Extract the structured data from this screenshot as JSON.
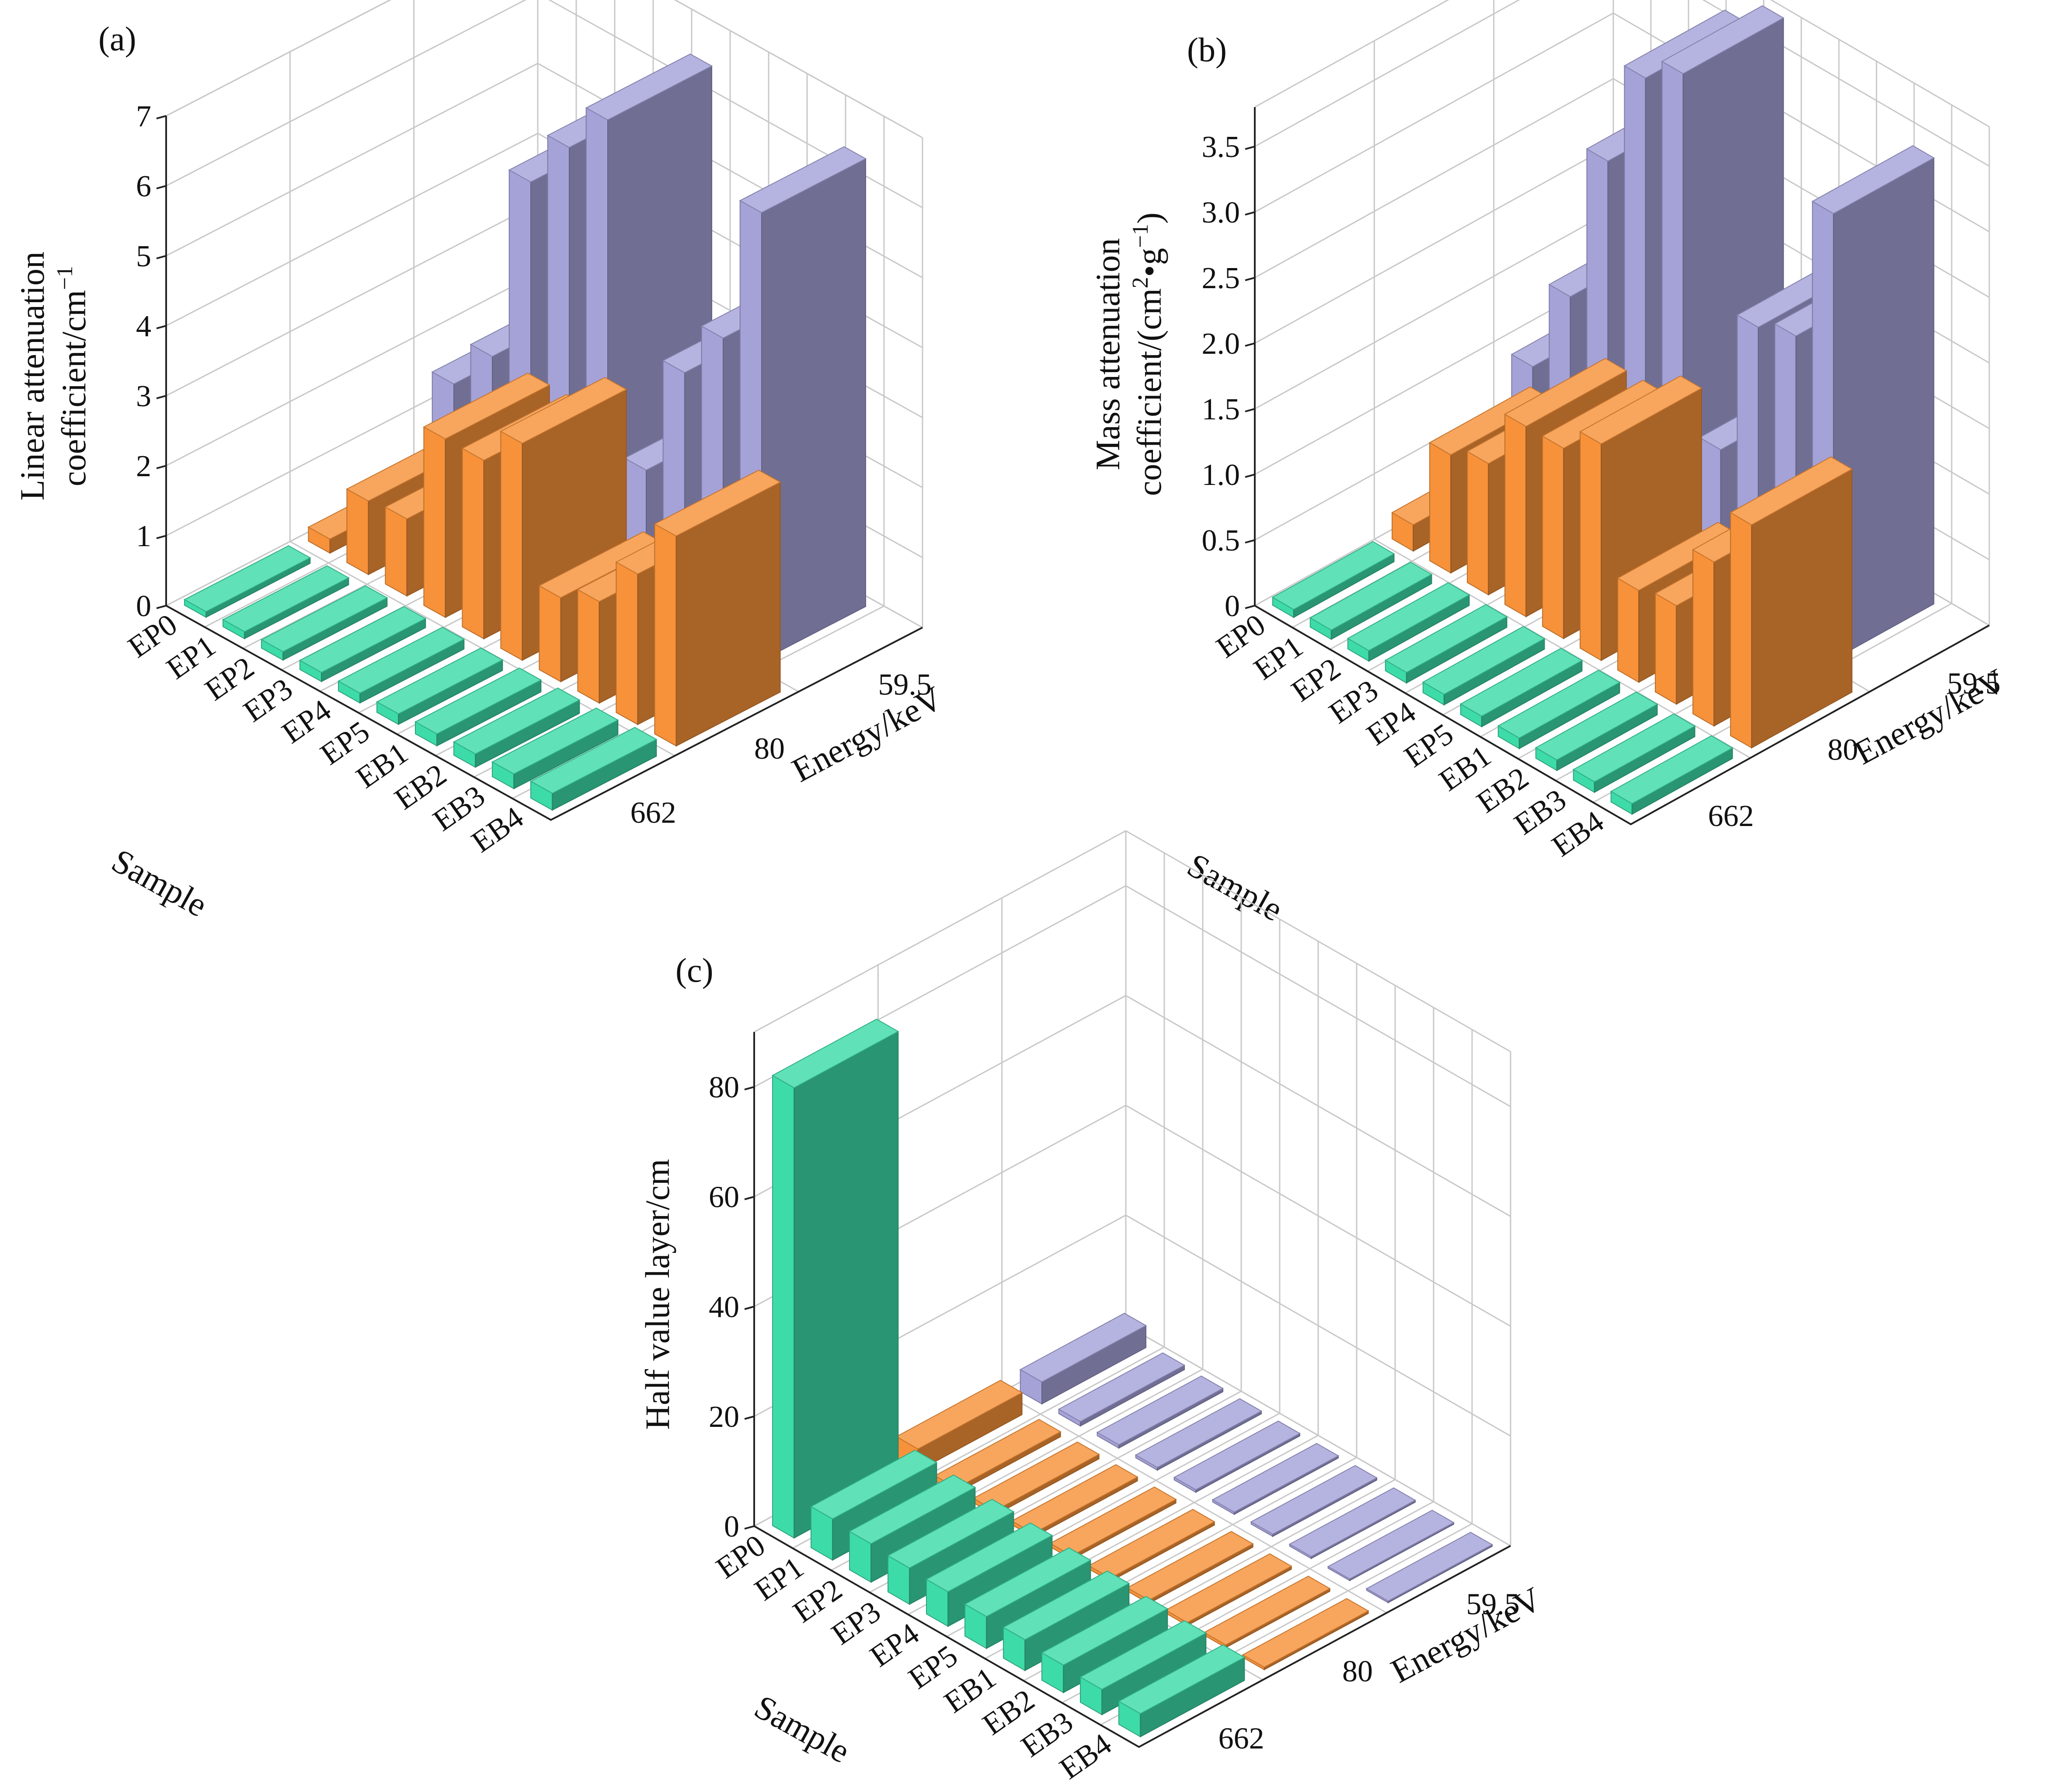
{
  "chart_data": [
    {
      "type": "bar3d",
      "panel_label": "(a)",
      "title": "",
      "zlabel_line1": "Linear attenuation",
      "zlabel_line2": "coefficient/cm",
      "zlabel_sup": "−1",
      "xlabel": "Sample",
      "ylabel": "Energy/keV",
      "samples": [
        "EP0",
        "EP1",
        "EP2",
        "EP3",
        "EP4",
        "EP5",
        "EB1",
        "EB2",
        "EB3",
        "EB4"
      ],
      "energies": [
        "662",
        "80",
        "59.5"
      ],
      "zlim": [
        0,
        7
      ],
      "zticks": [
        "0",
        "1",
        "2",
        "3",
        "4",
        "5",
        "6",
        "7"
      ],
      "series": [
        {
          "name": "662",
          "color": "#3ddba8",
          "values": [
            0.08,
            0.1,
            0.12,
            0.13,
            0.14,
            0.15,
            0.17,
            0.19,
            0.21,
            0.24
          ]
        },
        {
          "name": "80",
          "color": "#f7923a",
          "values": [
            0.2,
            1.05,
            1.1,
            2.55,
            2.55,
            3.1,
            1.2,
            1.45,
            2.15,
            3.0
          ]
        },
        {
          "name": "59.5",
          "color": "#a5a2d8",
          "values": [
            1.5,
            2.2,
            5.0,
            5.8,
            6.5,
            1.8,
            3.5,
            4.3,
            6.4,
            0
          ]
        }
      ]
    },
    {
      "type": "bar3d",
      "panel_label": "(b)",
      "title": "",
      "zlabel_line1": "Mass attenuation",
      "zlabel_line2": "coefficient/(cm",
      "zlabel_sup": "2",
      "zlabel_mid": "•g",
      "zlabel_sup2": "−1",
      "zlabel_tail": ")",
      "xlabel": "Sample",
      "ylabel": "Energy/keV",
      "samples": [
        "EP0",
        "EP1",
        "EP2",
        "EP3",
        "EP4",
        "EP5",
        "EB1",
        "EB2",
        "EB3",
        "EB4"
      ],
      "energies": [
        "662",
        "80",
        "59.5"
      ],
      "zlim": [
        0,
        3.8
      ],
      "zticks": [
        "0",
        "0.5",
        "1.0",
        "1.5",
        "2.0",
        "2.5",
        "3.0",
        "3.5"
      ],
      "series": [
        {
          "name": "662",
          "color": "#3ddba8",
          "values": [
            0.06,
            0.07,
            0.08,
            0.08,
            0.08,
            0.08,
            0.08,
            0.08,
            0.08,
            0.08
          ]
        },
        {
          "name": "80",
          "color": "#f7923a",
          "values": [
            0.2,
            0.9,
            1.0,
            1.45,
            1.45,
            1.65,
            0.7,
            0.75,
            1.25,
            1.7
          ]
        },
        {
          "name": "59.5",
          "color": "#a5a2d8",
          "values": [
            0.9,
            1.6,
            2.8,
            3.6,
            3.8,
            1.1,
            2.2,
            2.3,
            3.4,
            0
          ]
        }
      ]
    },
    {
      "type": "bar3d",
      "panel_label": "(c)",
      "title": "",
      "zlabel_line1": "Half value layer/cm",
      "xlabel": "Sample",
      "ylabel": "Energy/keV",
      "samples": [
        "EP0",
        "EP1",
        "EP2",
        "EP3",
        "EP4",
        "EP5",
        "EB1",
        "EB2",
        "EB3",
        "EB4"
      ],
      "energies": [
        "662",
        "80",
        "59.5"
      ],
      "zlim": [
        0,
        90
      ],
      "zticks": [
        "0",
        "20",
        "40",
        "60",
        "80"
      ],
      "series": [
        {
          "name": "662",
          "color": "#3ddba8",
          "values": [
            82,
            7.5,
            7.0,
            6.6,
            6.3,
            5.8,
            5.6,
            5.0,
            4.6,
            4.2
          ]
        },
        {
          "name": "80",
          "color": "#f7923a",
          "values": [
            4.0,
            0.9,
            0.8,
            0.7,
            0.65,
            0.6,
            0.6,
            0.55,
            0.5,
            0.45
          ]
        },
        {
          "name": "59.5",
          "color": "#a5a2d8",
          "values": [
            4.0,
            0.8,
            0.6,
            0.5,
            0.45,
            0.4,
            0.4,
            0.35,
            0.3,
            0.3
          ]
        }
      ]
    }
  ]
}
